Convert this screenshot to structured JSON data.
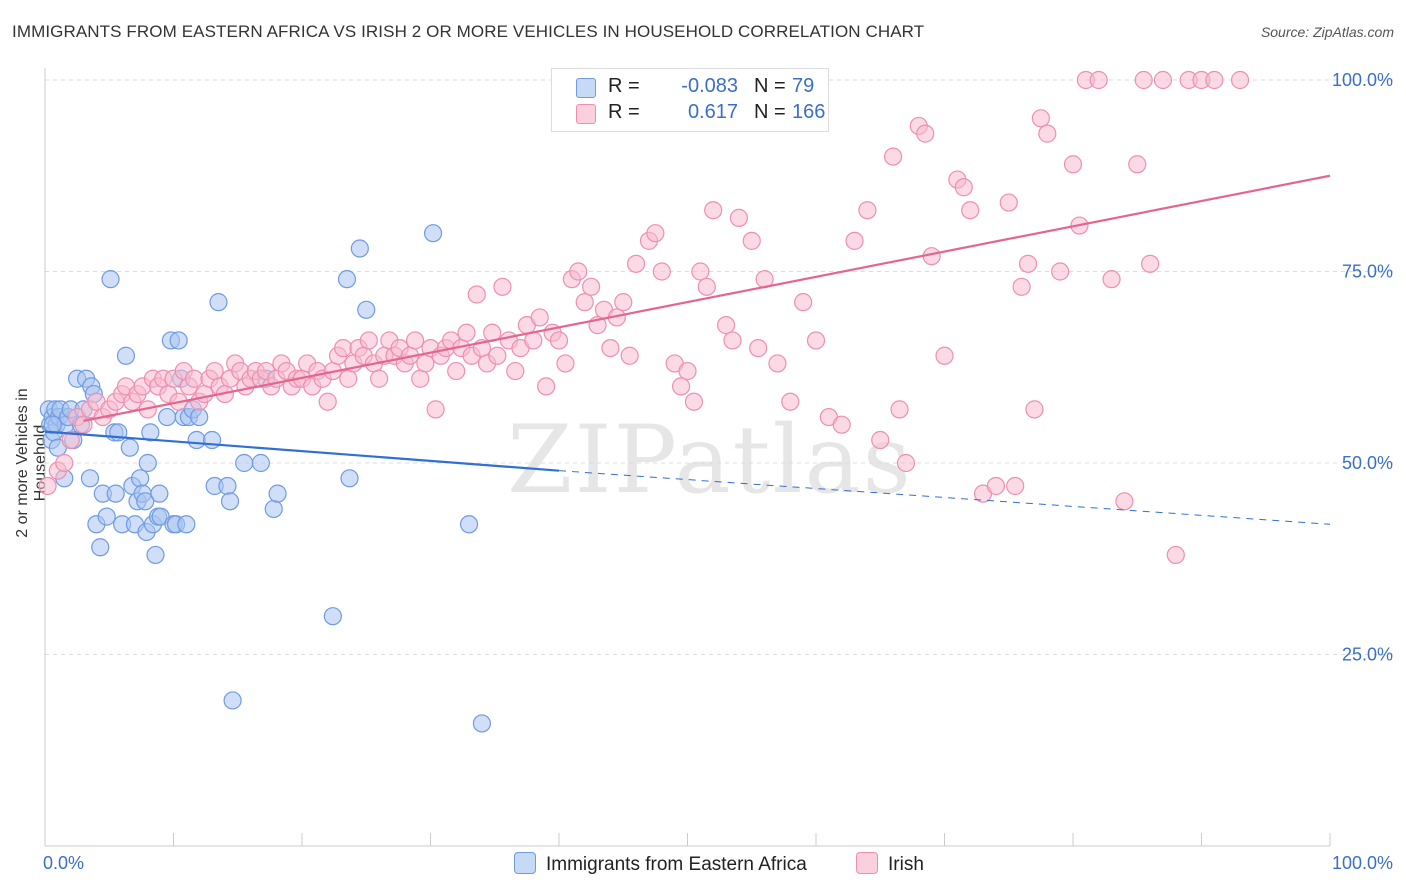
{
  "title": "IMMIGRANTS FROM EASTERN AFRICA VS IRISH 2 OR MORE VEHICLES IN HOUSEHOLD CORRELATION CHART",
  "source": "Source: ZipAtlas.com",
  "watermark": "ZIPatlas",
  "legend": {
    "r_label": "R =",
    "n_label": "N =",
    "rows": [
      {
        "name": "Immigrants from Eastern Africa",
        "r": "-0.083",
        "n": "79",
        "color": "#a9c5f0",
        "stroke": "#6f9be0"
      },
      {
        "name": "Irish",
        "r": "0.617",
        "n": "166",
        "color": "#f7bcd0",
        "stroke": "#ee8fb0"
      }
    ]
  },
  "chart_data": {
    "type": "scatter",
    "title": "IMMIGRANTS FROM EASTERN AFRICA VS IRISH 2 OR MORE VEHICLES IN HOUSEHOLD CORRELATION CHART",
    "xlabel": "",
    "ylabel": "2 or more Vehicles in Household",
    "xlim": [
      0,
      100
    ],
    "ylim": [
      0,
      105
    ],
    "x_tick_labels": [
      "0.0%",
      "100.0%"
    ],
    "y_ticks": [
      25,
      50,
      75,
      100
    ],
    "y_tick_labels": [
      "25.0%",
      "50.0%",
      "75.0%",
      "100.0%"
    ],
    "grid": true,
    "legend_position": "bottom",
    "series": [
      {
        "name": "Immigrants from Eastern Africa",
        "color": "#6f9be0",
        "fill": "#a9c5f0",
        "points": [
          [
            0.3,
            57
          ],
          [
            0.4,
            55
          ],
          [
            0.5,
            53
          ],
          [
            0.6,
            56
          ],
          [
            0.7,
            54
          ],
          [
            0.8,
            57
          ],
          [
            0.9,
            55
          ],
          [
            1,
            52
          ],
          [
            1.1,
            56
          ],
          [
            1.2,
            57
          ],
          [
            1.5,
            48
          ],
          [
            1.6,
            55
          ],
          [
            1.8,
            56
          ],
          [
            2,
            57
          ],
          [
            2.2,
            53
          ],
          [
            2.5,
            61
          ],
          [
            2.8,
            55
          ],
          [
            3,
            57
          ],
          [
            3.2,
            61
          ],
          [
            3.5,
            48
          ],
          [
            3.6,
            60
          ],
          [
            3.8,
            59
          ],
          [
            4,
            42
          ],
          [
            4.3,
            39
          ],
          [
            4.5,
            46
          ],
          [
            4.8,
            43
          ],
          [
            5.1,
            74
          ],
          [
            5.4,
            54
          ],
          [
            5.5,
            46
          ],
          [
            5.7,
            54
          ],
          [
            6,
            42
          ],
          [
            6.3,
            64
          ],
          [
            6.6,
            52
          ],
          [
            6.8,
            47
          ],
          [
            7,
            42
          ],
          [
            7.2,
            45
          ],
          [
            7.4,
            48
          ],
          [
            7.6,
            46
          ],
          [
            7.8,
            45
          ],
          [
            7.9,
            41
          ],
          [
            8,
            50
          ],
          [
            8.2,
            54
          ],
          [
            8.4,
            42
          ],
          [
            8.6,
            38
          ],
          [
            8.8,
            43
          ],
          [
            8.9,
            46
          ],
          [
            9,
            43
          ],
          [
            9.5,
            56
          ],
          [
            9.8,
            66
          ],
          [
            10,
            42
          ],
          [
            10.2,
            42
          ],
          [
            10.4,
            66
          ],
          [
            10.6,
            61
          ],
          [
            10.8,
            56
          ],
          [
            11,
            42
          ],
          [
            11.2,
            56
          ],
          [
            11.5,
            57
          ],
          [
            11.8,
            53
          ],
          [
            12,
            56
          ],
          [
            13,
            53
          ],
          [
            13.2,
            47
          ],
          [
            13.5,
            71
          ],
          [
            14.2,
            47
          ],
          [
            14.4,
            45
          ],
          [
            14.6,
            19
          ],
          [
            15.5,
            50
          ],
          [
            16.8,
            50
          ],
          [
            17.2,
            61
          ],
          [
            17.8,
            44
          ],
          [
            18.1,
            46
          ],
          [
            22.4,
            30
          ],
          [
            23.5,
            74
          ],
          [
            23.7,
            48
          ],
          [
            24.5,
            78
          ],
          [
            25,
            70
          ],
          [
            30.2,
            80
          ],
          [
            33,
            42
          ],
          [
            34,
            16
          ],
          [
            0.6,
            55
          ]
        ],
        "trend": {
          "x_start": 0,
          "y_start": 54.1,
          "x_solid_end": 40,
          "y_solid_end": 49.0,
          "x_end": 100,
          "y_end": 42.0
        }
      },
      {
        "name": "Irish",
        "color": "#ee8fb0",
        "fill": "#f7bcd0",
        "points": [
          [
            0.2,
            47
          ],
          [
            1,
            49
          ],
          [
            1.5,
            50
          ],
          [
            2,
            53
          ],
          [
            2.5,
            56
          ],
          [
            3,
            55
          ],
          [
            3.5,
            57
          ],
          [
            4,
            58
          ],
          [
            4.5,
            56
          ],
          [
            5,
            57
          ],
          [
            5.5,
            58
          ],
          [
            6,
            59
          ],
          [
            6.3,
            60
          ],
          [
            6.8,
            58
          ],
          [
            7.2,
            59
          ],
          [
            7.6,
            60
          ],
          [
            8,
            57
          ],
          [
            8.4,
            61
          ],
          [
            8.8,
            60
          ],
          [
            9.2,
            61
          ],
          [
            9.6,
            59
          ],
          [
            10,
            61
          ],
          [
            10.4,
            58
          ],
          [
            10.8,
            62
          ],
          [
            11.2,
            60
          ],
          [
            11.6,
            61
          ],
          [
            12,
            58
          ],
          [
            12.4,
            59
          ],
          [
            12.8,
            61
          ],
          [
            13.2,
            62
          ],
          [
            13.6,
            60
          ],
          [
            14,
            59
          ],
          [
            14.4,
            61
          ],
          [
            14.8,
            63
          ],
          [
            15.2,
            62
          ],
          [
            15.6,
            60
          ],
          [
            16,
            61
          ],
          [
            16.4,
            62
          ],
          [
            16.8,
            61
          ],
          [
            17.2,
            62
          ],
          [
            17.6,
            60
          ],
          [
            18,
            61
          ],
          [
            18.4,
            63
          ],
          [
            18.8,
            62
          ],
          [
            19.2,
            60
          ],
          [
            19.6,
            61
          ],
          [
            20,
            61
          ],
          [
            20.4,
            63
          ],
          [
            20.8,
            60
          ],
          [
            21.2,
            62
          ],
          [
            21.6,
            61
          ],
          [
            22,
            58
          ],
          [
            22.4,
            62
          ],
          [
            22.8,
            64
          ],
          [
            23.2,
            65
          ],
          [
            23.6,
            61
          ],
          [
            24,
            63
          ],
          [
            24.4,
            65
          ],
          [
            24.8,
            64
          ],
          [
            25.2,
            66
          ],
          [
            25.6,
            63
          ],
          [
            26,
            61
          ],
          [
            26.4,
            64
          ],
          [
            26.8,
            66
          ],
          [
            27.2,
            64
          ],
          [
            27.6,
            65
          ],
          [
            28,
            63
          ],
          [
            28.4,
            64
          ],
          [
            28.8,
            66
          ],
          [
            29.2,
            61
          ],
          [
            29.6,
            63
          ],
          [
            30,
            65
          ],
          [
            30.4,
            57
          ],
          [
            30.8,
            64
          ],
          [
            31.2,
            65
          ],
          [
            31.6,
            66
          ],
          [
            32,
            62
          ],
          [
            32.4,
            65
          ],
          [
            32.8,
            67
          ],
          [
            33.2,
            64
          ],
          [
            33.6,
            72
          ],
          [
            34,
            65
          ],
          [
            34.4,
            63
          ],
          [
            34.8,
            67
          ],
          [
            35.2,
            64
          ],
          [
            35.6,
            73
          ],
          [
            36.1,
            66
          ],
          [
            36.6,
            62
          ],
          [
            37,
            65
          ],
          [
            37.5,
            68
          ],
          [
            38,
            66
          ],
          [
            38.5,
            69
          ],
          [
            39,
            60
          ],
          [
            39.5,
            67
          ],
          [
            40,
            66
          ],
          [
            40.5,
            63
          ],
          [
            41,
            74
          ],
          [
            41.5,
            75
          ],
          [
            42,
            71
          ],
          [
            42.5,
            73
          ],
          [
            43,
            68
          ],
          [
            43.5,
            70
          ],
          [
            44,
            65
          ],
          [
            44.5,
            69
          ],
          [
            45,
            71
          ],
          [
            45.5,
            64
          ],
          [
            46,
            76
          ],
          [
            47,
            79
          ],
          [
            47.5,
            80
          ],
          [
            48,
            75
          ],
          [
            49,
            63
          ],
          [
            49.5,
            60
          ],
          [
            50,
            62
          ],
          [
            50.5,
            58
          ],
          [
            51,
            75
          ],
          [
            51.5,
            73
          ],
          [
            52,
            83
          ],
          [
            53,
            68
          ],
          [
            53.5,
            66
          ],
          [
            54,
            82
          ],
          [
            55,
            79
          ],
          [
            55.5,
            65
          ],
          [
            56,
            74
          ],
          [
            57,
            63
          ],
          [
            58,
            58
          ],
          [
            59,
            71
          ],
          [
            60,
            66
          ],
          [
            61,
            56
          ],
          [
            62,
            55
          ],
          [
            63,
            79
          ],
          [
            64,
            83
          ],
          [
            65,
            53
          ],
          [
            66,
            90
          ],
          [
            66.5,
            57
          ],
          [
            67,
            50
          ],
          [
            68,
            94
          ],
          [
            68.5,
            93
          ],
          [
            69,
            77
          ],
          [
            70,
            64
          ],
          [
            71,
            87
          ],
          [
            71.5,
            86
          ],
          [
            72,
            83
          ],
          [
            73,
            46
          ],
          [
            74,
            47
          ],
          [
            75,
            84
          ],
          [
            75.5,
            47
          ],
          [
            76,
            73
          ],
          [
            76.5,
            76
          ],
          [
            77,
            57
          ],
          [
            77.5,
            95
          ],
          [
            78,
            93
          ],
          [
            79,
            75
          ],
          [
            80,
            89
          ],
          [
            80.5,
            81
          ],
          [
            81,
            100
          ],
          [
            82,
            100
          ],
          [
            83,
            74
          ],
          [
            84,
            45
          ],
          [
            85,
            89
          ],
          [
            85.5,
            100
          ],
          [
            86,
            76
          ],
          [
            87,
            100
          ],
          [
            88,
            38
          ],
          [
            89,
            100
          ],
          [
            90,
            100
          ],
          [
            91,
            100
          ],
          [
            93,
            100
          ]
        ],
        "trend": {
          "x_start": 3,
          "y_start": 55.5,
          "x_end": 100,
          "y_end": 87.5
        }
      }
    ]
  }
}
